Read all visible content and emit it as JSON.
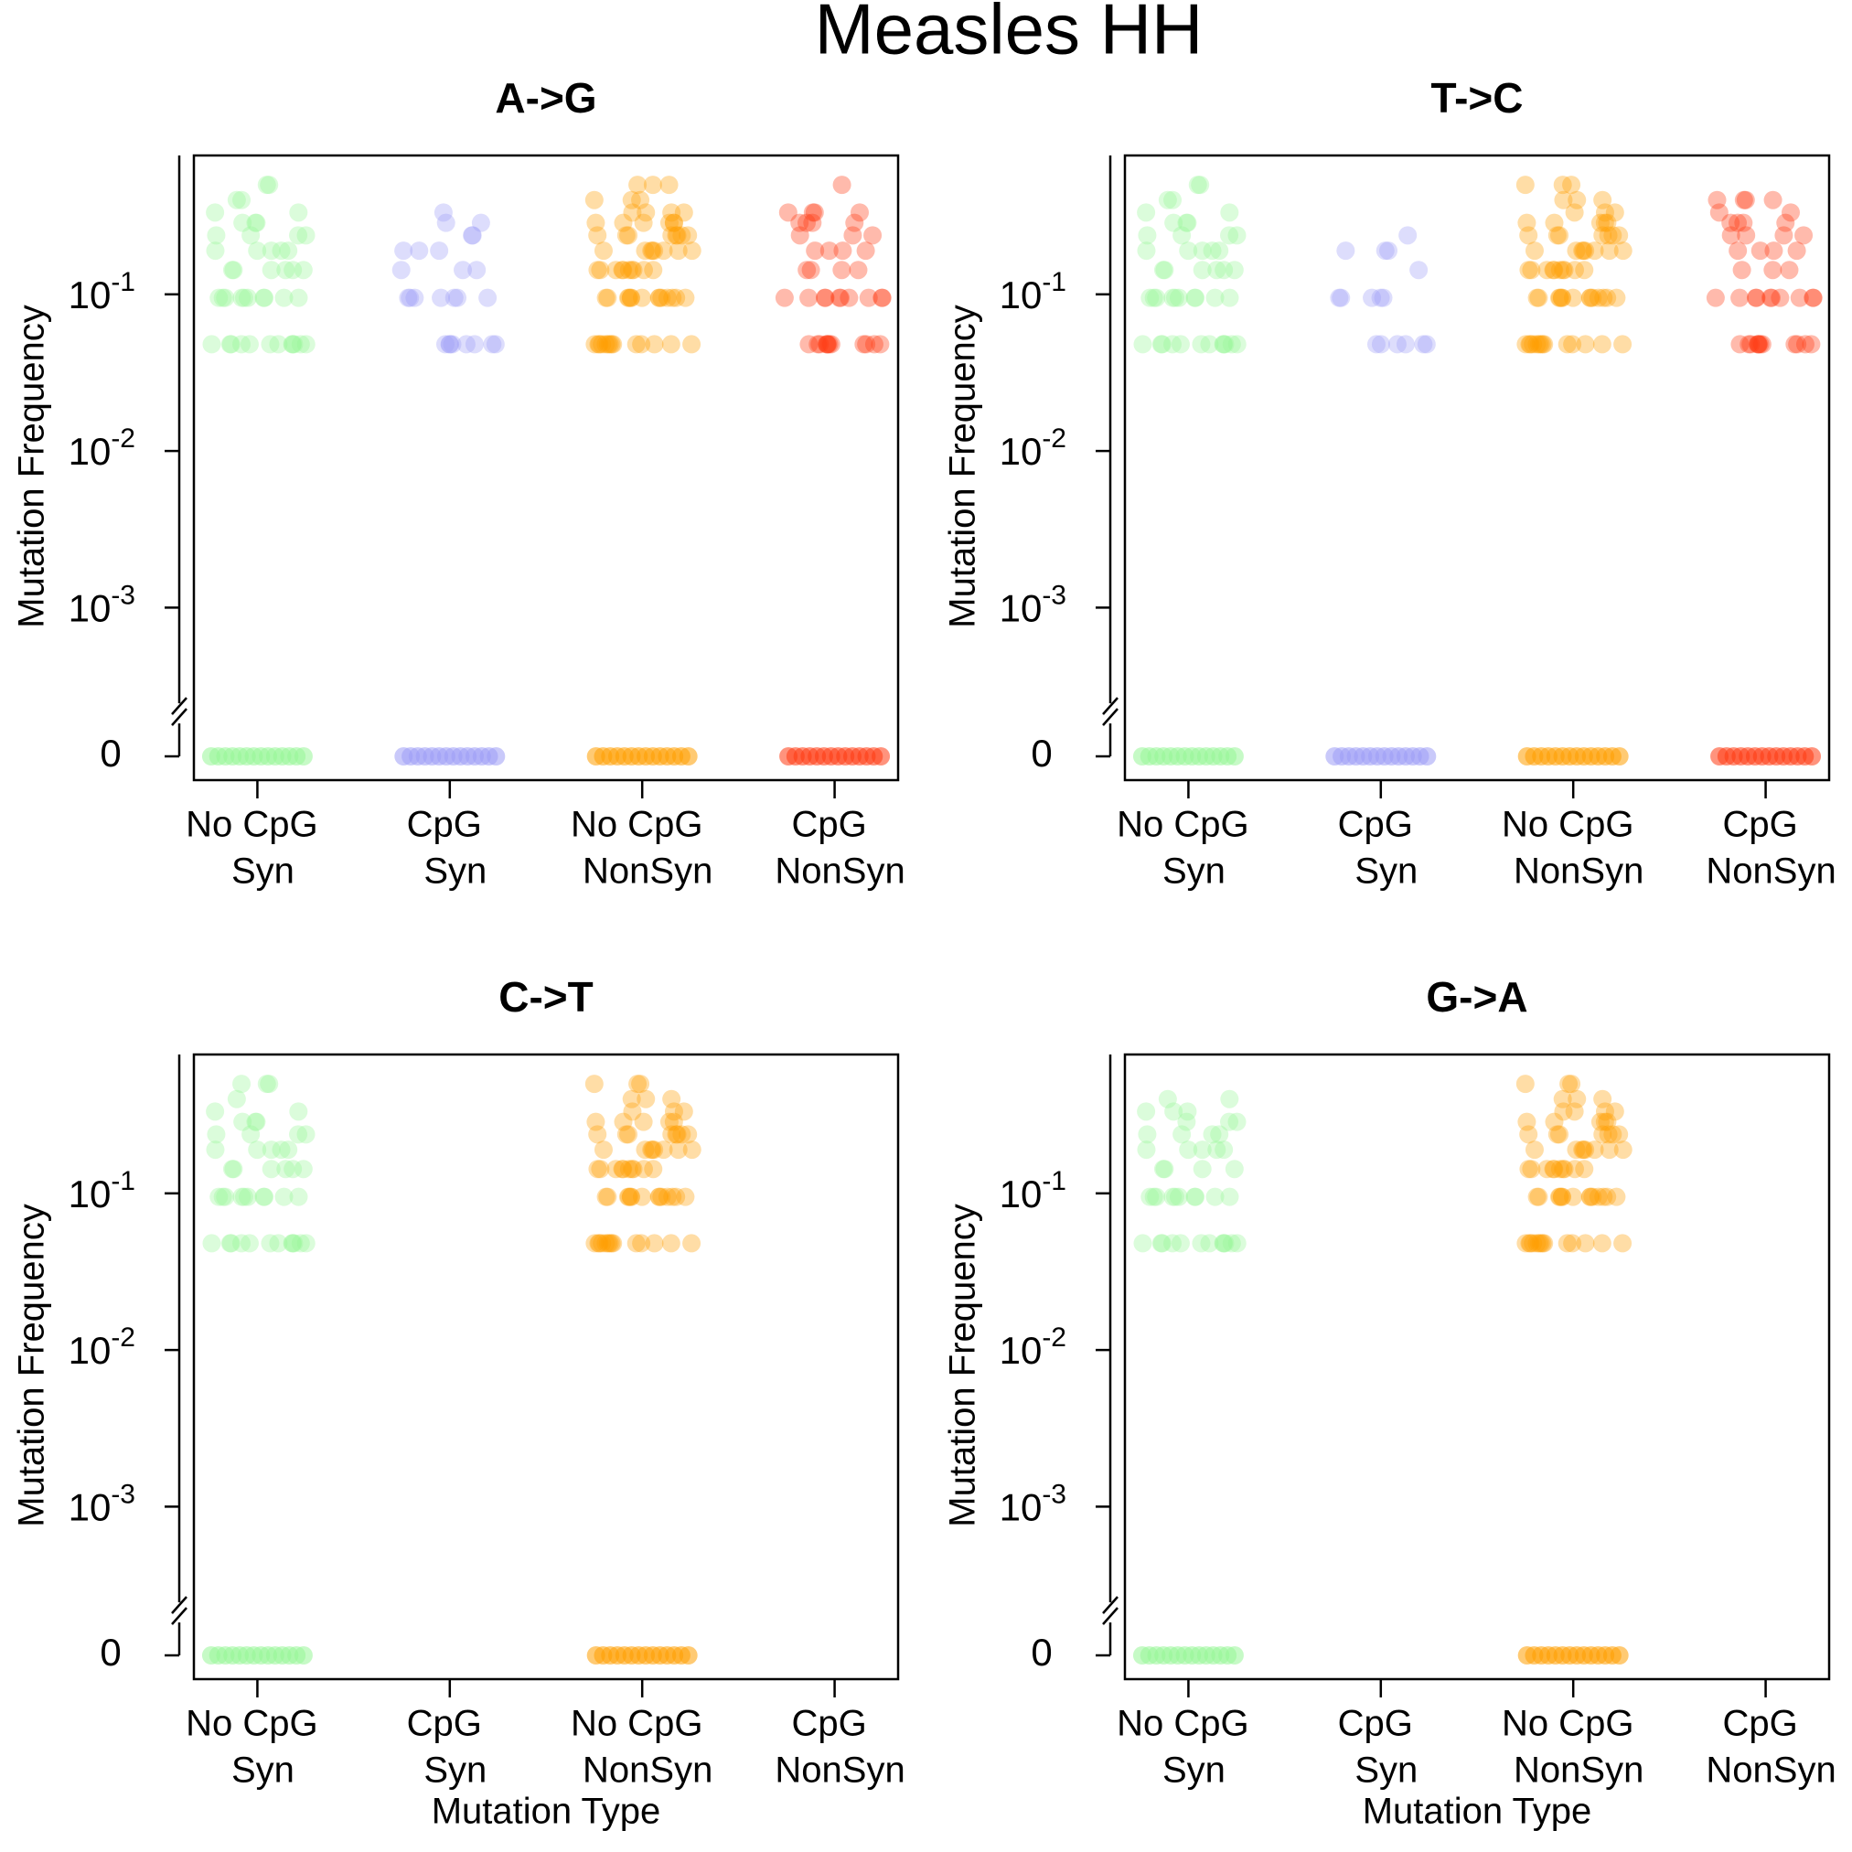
{
  "title": "Measles HH",
  "chart_data": [
    {
      "type": "strip",
      "title": "A->G",
      "ylabel": "Mutation Frequency",
      "log_y": true,
      "categories": [
        [
          "No CpG",
          "Syn"
        ],
        [
          "CpG",
          "Syn"
        ],
        [
          "No CpG",
          "NonSyn"
        ],
        [
          "CpG",
          "NonSyn"
        ]
      ],
      "colors": [
        "#98f598",
        "#9d9df5",
        "#ff9f00",
        "#ff3a12"
      ],
      "ylim": [
        0.00022,
        0.77
      ],
      "yticks": [
        {
          "value": 0.1,
          "label": "10",
          "exponent": "-1"
        },
        {
          "value": 0.01,
          "label": "10",
          "exponent": "-2"
        },
        {
          "value": 0.001,
          "label": "10",
          "exponent": "-3"
        },
        0
      ],
      "values": [
        [
          0,
          0,
          0,
          0,
          0,
          0,
          0,
          0,
          0,
          0,
          0,
          0,
          0,
          0,
          0.048,
          0.048,
          0.048,
          0.048,
          0.048,
          0.048,
          0.048,
          0.048,
          0.048,
          0.048,
          0.048,
          0.048,
          0.095,
          0.095,
          0.095,
          0.095,
          0.095,
          0.095,
          0.095,
          0.095,
          0.095,
          0.095,
          0.143,
          0.143,
          0.143,
          0.143,
          0.143,
          0.143,
          0.19,
          0.19,
          0.19,
          0.19,
          0.19,
          0.238,
          0.238,
          0.238,
          0.238,
          0.286,
          0.286,
          0.286,
          0.333,
          0.333,
          0.4,
          0.4,
          0.5,
          0.5
        ],
        [
          0,
          0,
          0,
          0,
          0,
          0,
          0,
          0,
          0,
          0,
          0,
          0,
          0,
          0,
          0.048,
          0.048,
          0.048,
          0.048,
          0.048,
          0.048,
          0.048,
          0.048,
          0.095,
          0.095,
          0.095,
          0.095,
          0.095,
          0.095,
          0.095,
          0.143,
          0.143,
          0.143,
          0.19,
          0.19,
          0.19,
          0.238,
          0.238,
          0.286,
          0.286,
          0.333
        ],
        [
          0,
          0,
          0,
          0,
          0,
          0,
          0,
          0,
          0,
          0,
          0,
          0,
          0,
          0,
          0.048,
          0.048,
          0.048,
          0.048,
          0.048,
          0.048,
          0.048,
          0.048,
          0.048,
          0.048,
          0.048,
          0.048,
          0.048,
          0.048,
          0.095,
          0.095,
          0.095,
          0.095,
          0.095,
          0.095,
          0.095,
          0.095,
          0.095,
          0.095,
          0.095,
          0.095,
          0.095,
          0.095,
          0.143,
          0.143,
          0.143,
          0.143,
          0.143,
          0.143,
          0.143,
          0.143,
          0.143,
          0.143,
          0.19,
          0.19,
          0.19,
          0.19,
          0.19,
          0.19,
          0.19,
          0.19,
          0.238,
          0.238,
          0.238,
          0.238,
          0.238,
          0.238,
          0.238,
          0.238,
          0.286,
          0.286,
          0.286,
          0.286,
          0.286,
          0.286,
          0.333,
          0.333,
          0.333,
          0.333,
          0.4,
          0.4,
          0.4,
          0.5,
          0.5,
          0.5
        ],
        [
          0,
          0,
          0,
          0,
          0,
          0,
          0,
          0,
          0,
          0,
          0,
          0,
          0,
          0,
          0.048,
          0.048,
          0.048,
          0.048,
          0.048,
          0.048,
          0.048,
          0.048,
          0.048,
          0.048,
          0.048,
          0.048,
          0.095,
          0.095,
          0.095,
          0.095,
          0.095,
          0.095,
          0.095,
          0.095,
          0.095,
          0.095,
          0.143,
          0.143,
          0.143,
          0.143,
          0.19,
          0.19,
          0.19,
          0.19,
          0.238,
          0.238,
          0.238,
          0.286,
          0.286,
          0.286,
          0.286,
          0.333,
          0.333,
          0.333,
          0.333,
          0.5
        ]
      ]
    },
    {
      "type": "strip",
      "title": "T->C",
      "ylabel": "Mutation Frequency",
      "log_y": true,
      "categories": [
        [
          "No CpG",
          "Syn"
        ],
        [
          "CpG",
          "Syn"
        ],
        [
          "No CpG",
          "NonSyn"
        ],
        [
          "CpG",
          "NonSyn"
        ]
      ],
      "colors": [
        "#98f598",
        "#9d9df5",
        "#ff9f00",
        "#ff3a12"
      ],
      "ylim": [
        0.00022,
        0.77
      ],
      "yticks": [
        {
          "value": 0.1,
          "label": "10",
          "exponent": "-1"
        },
        {
          "value": 0.01,
          "label": "10",
          "exponent": "-2"
        },
        {
          "value": 0.001,
          "label": "10",
          "exponent": "-3"
        },
        0
      ],
      "values": [
        [
          0,
          0,
          0,
          0,
          0,
          0,
          0,
          0,
          0,
          0,
          0,
          0,
          0,
          0,
          0.048,
          0.048,
          0.048,
          0.048,
          0.048,
          0.048,
          0.048,
          0.048,
          0.048,
          0.048,
          0.048,
          0.048,
          0.095,
          0.095,
          0.095,
          0.095,
          0.095,
          0.095,
          0.095,
          0.095,
          0.095,
          0.095,
          0.143,
          0.143,
          0.143,
          0.143,
          0.143,
          0.143,
          0.19,
          0.19,
          0.19,
          0.19,
          0.19,
          0.238,
          0.238,
          0.238,
          0.238,
          0.286,
          0.286,
          0.286,
          0.333,
          0.333,
          0.4,
          0.4,
          0.5,
          0.5
        ],
        [
          0,
          0,
          0,
          0,
          0,
          0,
          0,
          0,
          0,
          0,
          0,
          0,
          0,
          0,
          0.048,
          0.048,
          0.048,
          0.048,
          0.048,
          0.048,
          0.095,
          0.095,
          0.095,
          0.095,
          0.095,
          0.143,
          0.19,
          0.19,
          0.19,
          0.238
        ],
        [
          0,
          0,
          0,
          0,
          0,
          0,
          0,
          0,
          0,
          0,
          0,
          0,
          0,
          0,
          0.048,
          0.048,
          0.048,
          0.048,
          0.048,
          0.048,
          0.048,
          0.048,
          0.048,
          0.048,
          0.048,
          0.048,
          0.048,
          0.048,
          0.095,
          0.095,
          0.095,
          0.095,
          0.095,
          0.095,
          0.095,
          0.095,
          0.095,
          0.095,
          0.095,
          0.095,
          0.095,
          0.095,
          0.143,
          0.143,
          0.143,
          0.143,
          0.143,
          0.143,
          0.143,
          0.143,
          0.143,
          0.143,
          0.19,
          0.19,
          0.19,
          0.19,
          0.19,
          0.19,
          0.19,
          0.19,
          0.238,
          0.238,
          0.238,
          0.238,
          0.238,
          0.238,
          0.238,
          0.286,
          0.286,
          0.286,
          0.286,
          0.286,
          0.333,
          0.333,
          0.333,
          0.4,
          0.4,
          0.4,
          0.5,
          0.5,
          0.5
        ],
        [
          0,
          0,
          0,
          0,
          0,
          0,
          0,
          0,
          0,
          0,
          0,
          0,
          0,
          0,
          0.048,
          0.048,
          0.048,
          0.048,
          0.048,
          0.048,
          0.048,
          0.048,
          0.048,
          0.048,
          0.048,
          0.048,
          0.095,
          0.095,
          0.095,
          0.095,
          0.095,
          0.095,
          0.095,
          0.095,
          0.095,
          0.095,
          0.143,
          0.143,
          0.143,
          0.19,
          0.19,
          0.19,
          0.19,
          0.238,
          0.238,
          0.238,
          0.238,
          0.286,
          0.286,
          0.286,
          0.286,
          0.333,
          0.333,
          0.4,
          0.4,
          0.4,
          0.4
        ]
      ]
    },
    {
      "type": "strip",
      "title": "C->T",
      "ylabel": "Mutation Frequency",
      "xlabel": "Mutation Type",
      "log_y": true,
      "categories": [
        [
          "No CpG",
          "Syn"
        ],
        [
          "CpG",
          "Syn"
        ],
        [
          "No CpG",
          "NonSyn"
        ],
        [
          "CpG",
          "NonSyn"
        ]
      ],
      "colors": [
        "#98f598",
        "#9d9df5",
        "#ff9f00",
        "#ff3a12"
      ],
      "ylim": [
        0.00022,
        0.77
      ],
      "yticks": [
        {
          "value": 0.1,
          "label": "10",
          "exponent": "-1"
        },
        {
          "value": 0.01,
          "label": "10",
          "exponent": "-2"
        },
        {
          "value": 0.001,
          "label": "10",
          "exponent": "-3"
        },
        0
      ],
      "values": [
        [
          0,
          0,
          0,
          0,
          0,
          0,
          0,
          0,
          0,
          0,
          0,
          0,
          0,
          0,
          0.048,
          0.048,
          0.048,
          0.048,
          0.048,
          0.048,
          0.048,
          0.048,
          0.048,
          0.048,
          0.048,
          0.048,
          0.095,
          0.095,
          0.095,
          0.095,
          0.095,
          0.095,
          0.095,
          0.095,
          0.095,
          0.095,
          0.143,
          0.143,
          0.143,
          0.143,
          0.143,
          0.143,
          0.19,
          0.19,
          0.19,
          0.19,
          0.19,
          0.238,
          0.238,
          0.238,
          0.238,
          0.286,
          0.286,
          0.286,
          0.333,
          0.333,
          0.4,
          0.5,
          0.5,
          0.5
        ],
        [],
        [
          0,
          0,
          0,
          0,
          0,
          0,
          0,
          0,
          0,
          0,
          0,
          0,
          0,
          0,
          0.048,
          0.048,
          0.048,
          0.048,
          0.048,
          0.048,
          0.048,
          0.048,
          0.048,
          0.048,
          0.048,
          0.048,
          0.048,
          0.048,
          0.095,
          0.095,
          0.095,
          0.095,
          0.095,
          0.095,
          0.095,
          0.095,
          0.095,
          0.095,
          0.095,
          0.095,
          0.095,
          0.095,
          0.143,
          0.143,
          0.143,
          0.143,
          0.143,
          0.143,
          0.143,
          0.143,
          0.143,
          0.143,
          0.19,
          0.19,
          0.19,
          0.19,
          0.19,
          0.19,
          0.19,
          0.19,
          0.238,
          0.238,
          0.238,
          0.238,
          0.238,
          0.238,
          0.238,
          0.238,
          0.286,
          0.286,
          0.286,
          0.286,
          0.286,
          0.333,
          0.333,
          0.333,
          0.4,
          0.4,
          0.4,
          0.5,
          0.5,
          0.5
        ],
        []
      ]
    },
    {
      "type": "strip",
      "title": "G->A",
      "ylabel": "Mutation Frequency",
      "xlabel": "Mutation Type",
      "log_y": true,
      "categories": [
        [
          "No CpG",
          "Syn"
        ],
        [
          "CpG",
          "Syn"
        ],
        [
          "No CpG",
          "NonSyn"
        ],
        [
          "CpG",
          "NonSyn"
        ]
      ],
      "colors": [
        "#98f598",
        "#9d9df5",
        "#ff9f00",
        "#ff3a12"
      ],
      "ylim": [
        0.00022,
        0.77
      ],
      "yticks": [
        {
          "value": 0.1,
          "label": "10",
          "exponent": "-1"
        },
        {
          "value": 0.01,
          "label": "10",
          "exponent": "-2"
        },
        {
          "value": 0.001,
          "label": "10",
          "exponent": "-3"
        },
        0
      ],
      "values": [
        [
          0,
          0,
          0,
          0,
          0,
          0,
          0,
          0,
          0,
          0,
          0,
          0,
          0,
          0,
          0.048,
          0.048,
          0.048,
          0.048,
          0.048,
          0.048,
          0.048,
          0.048,
          0.048,
          0.048,
          0.048,
          0.048,
          0.095,
          0.095,
          0.095,
          0.095,
          0.095,
          0.095,
          0.095,
          0.095,
          0.095,
          0.095,
          0.143,
          0.143,
          0.143,
          0.143,
          0.19,
          0.19,
          0.19,
          0.19,
          0.19,
          0.238,
          0.238,
          0.238,
          0.238,
          0.286,
          0.286,
          0.286,
          0.333,
          0.333,
          0.333,
          0.4,
          0.4
        ],
        [],
        [
          0,
          0,
          0,
          0,
          0,
          0,
          0,
          0,
          0,
          0,
          0,
          0,
          0,
          0,
          0.048,
          0.048,
          0.048,
          0.048,
          0.048,
          0.048,
          0.048,
          0.048,
          0.048,
          0.048,
          0.048,
          0.048,
          0.048,
          0.048,
          0.095,
          0.095,
          0.095,
          0.095,
          0.095,
          0.095,
          0.095,
          0.095,
          0.095,
          0.095,
          0.095,
          0.095,
          0.095,
          0.095,
          0.143,
          0.143,
          0.143,
          0.143,
          0.143,
          0.143,
          0.143,
          0.143,
          0.143,
          0.143,
          0.19,
          0.19,
          0.19,
          0.19,
          0.19,
          0.19,
          0.19,
          0.19,
          0.238,
          0.238,
          0.238,
          0.238,
          0.238,
          0.238,
          0.238,
          0.286,
          0.286,
          0.286,
          0.286,
          0.286,
          0.333,
          0.333,
          0.333,
          0.333,
          0.4,
          0.4,
          0.4,
          0.5,
          0.5,
          0.5
        ],
        []
      ]
    }
  ]
}
